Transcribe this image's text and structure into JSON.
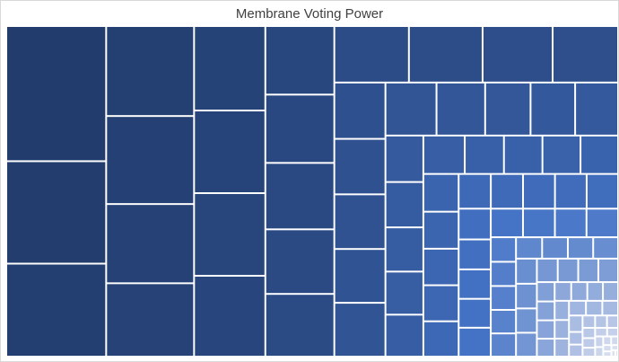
{
  "chart_data": {
    "type": "treemap",
    "title": "Membrane Voting Power",
    "values": [
      15700,
      11900,
      10800,
      9200,
      9000,
      8100,
      7500,
      7000,
      6850,
      6850,
      6700,
      5500,
      5480,
      5330,
      5180,
      5030,
      4900,
      4840,
      4600,
      4300,
      3350,
      3300,
      3250,
      3200,
      3200,
      3150,
      3000,
      2800,
      2750,
      2650,
      2050,
      2000,
      1950,
      1900,
      1850,
      1850,
      1750,
      1720,
      1700,
      1680,
      1550,
      1520,
      1500,
      1480,
      1450,
      1300,
      1300,
      1290,
      1280,
      1270,
      1150,
      1120,
      1100,
      1080,
      1080,
      1070,
      1060,
      1050,
      1050,
      720,
      710,
      700,
      690,
      680,
      650,
      640,
      630,
      620,
      610,
      600,
      590,
      580,
      570,
      560,
      550,
      540,
      400,
      390,
      380,
      370,
      360,
      350,
      340,
      330,
      320,
      310,
      300,
      290,
      280,
      270,
      260,
      200,
      190,
      180,
      170,
      160,
      150,
      140,
      130,
      120,
      110,
      100,
      90,
      80,
      70,
      60,
      50,
      40,
      30,
      20
    ],
    "colors": [
      "#223c6d",
      "#4473c6",
      "#dfe3f1"
    ]
  }
}
